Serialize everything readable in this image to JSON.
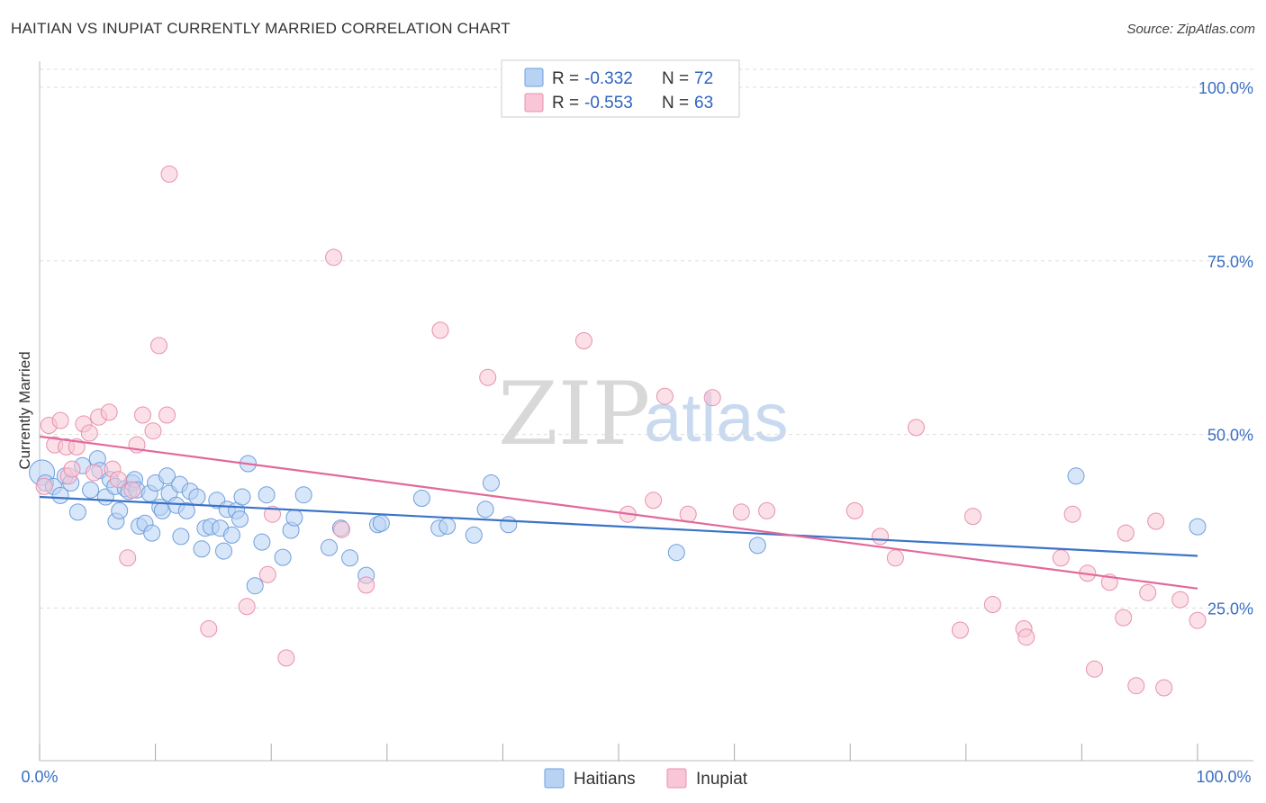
{
  "header": {
    "title": "HAITIAN VS INUPIAT CURRENTLY MARRIED CORRELATION CHART",
    "source": "Source: ZipAtlas.com"
  },
  "watermark": {
    "zip": "ZIP",
    "atlas": "atlas"
  },
  "colors": {
    "haitians_fill": "#b8d2f4",
    "haitians_stroke": "#6f9fdc",
    "haitians_line": "#3a74c8",
    "inupiat_fill": "#f8c6d6",
    "inupiat_stroke": "#e891ad",
    "inupiat_line": "#e2699a",
    "grid": "#dddddd",
    "axis_label": "#3a6fc4"
  },
  "legend": {
    "rows": [
      {
        "r_label": "R = ",
        "r_value": "-0.332",
        "n_label": "N = ",
        "n_value": "72"
      },
      {
        "r_label": "R = ",
        "r_value": "-0.553",
        "n_label": "N = ",
        "n_value": "63"
      }
    ]
  },
  "chart_data": {
    "type": "scatter",
    "title": "HAITIAN VS INUPIAT CURRENTLY MARRIED CORRELATION CHART",
    "xlabel": "",
    "ylabel": "Currently Married",
    "xlim": [
      0,
      100
    ],
    "ylim": [
      3,
      105
    ],
    "x_tick_labels": [
      "0.0%",
      "100.0%"
    ],
    "y_ticks": [
      25,
      50,
      75,
      100
    ],
    "y_tick_labels": [
      "25.0%",
      "50.0%",
      "75.0%",
      "100.0%"
    ],
    "grid": true,
    "legend_position": "top-center",
    "series": [
      {
        "name": "Haitians",
        "r": -0.332,
        "n": 72,
        "trend": {
          "x": [
            0,
            100
          ],
          "y": [
            41.0,
            32.5
          ]
        },
        "points": [
          {
            "x": 0.2,
            "y": 44.5,
            "big": true
          },
          {
            "x": 0.5,
            "y": 43.0
          },
          {
            "x": 1.2,
            "y": 42.5
          },
          {
            "x": 1.8,
            "y": 41.2
          },
          {
            "x": 2.2,
            "y": 44.0
          },
          {
            "x": 2.7,
            "y": 43.0
          },
          {
            "x": 3.3,
            "y": 38.8
          },
          {
            "x": 3.7,
            "y": 45.5
          },
          {
            "x": 4.4,
            "y": 42.0
          },
          {
            "x": 5.0,
            "y": 46.5
          },
          {
            "x": 5.2,
            "y": 44.8
          },
          {
            "x": 5.7,
            "y": 41.0
          },
          {
            "x": 6.1,
            "y": 43.5
          },
          {
            "x": 6.5,
            "y": 42.5
          },
          {
            "x": 6.6,
            "y": 37.5
          },
          {
            "x": 6.9,
            "y": 39.0
          },
          {
            "x": 7.4,
            "y": 42.2
          },
          {
            "x": 7.7,
            "y": 41.8
          },
          {
            "x": 8.0,
            "y": 43.0
          },
          {
            "x": 8.2,
            "y": 43.5
          },
          {
            "x": 8.4,
            "y": 42.0
          },
          {
            "x": 8.6,
            "y": 36.8
          },
          {
            "x": 9.1,
            "y": 37.2
          },
          {
            "x": 9.5,
            "y": 41.5
          },
          {
            "x": 9.7,
            "y": 35.8
          },
          {
            "x": 10.0,
            "y": 43.0
          },
          {
            "x": 10.4,
            "y": 39.5
          },
          {
            "x": 10.6,
            "y": 39.0
          },
          {
            "x": 11.0,
            "y": 44.0
          },
          {
            "x": 11.2,
            "y": 41.5
          },
          {
            "x": 11.8,
            "y": 39.8
          },
          {
            "x": 12.1,
            "y": 42.8
          },
          {
            "x": 12.2,
            "y": 35.3
          },
          {
            "x": 12.7,
            "y": 39.0
          },
          {
            "x": 13.0,
            "y": 41.8
          },
          {
            "x": 13.6,
            "y": 41.0
          },
          {
            "x": 14.0,
            "y": 33.5
          },
          {
            "x": 14.3,
            "y": 36.5
          },
          {
            "x": 14.8,
            "y": 36.7
          },
          {
            "x": 15.3,
            "y": 40.5
          },
          {
            "x": 15.6,
            "y": 36.5
          },
          {
            "x": 15.9,
            "y": 33.2
          },
          {
            "x": 16.2,
            "y": 39.2
          },
          {
            "x": 16.6,
            "y": 35.5
          },
          {
            "x": 17.0,
            "y": 39.0
          },
          {
            "x": 17.3,
            "y": 37.8
          },
          {
            "x": 17.5,
            "y": 41.0
          },
          {
            "x": 18.0,
            "y": 45.8
          },
          {
            "x": 18.6,
            "y": 28.2
          },
          {
            "x": 19.2,
            "y": 34.5
          },
          {
            "x": 19.6,
            "y": 41.3
          },
          {
            "x": 21.0,
            "y": 32.3
          },
          {
            "x": 21.7,
            "y": 36.2
          },
          {
            "x": 22.0,
            "y": 38.0
          },
          {
            "x": 22.8,
            "y": 41.3
          },
          {
            "x": 25.0,
            "y": 33.7
          },
          {
            "x": 26.0,
            "y": 36.5
          },
          {
            "x": 26.8,
            "y": 32.2
          },
          {
            "x": 28.2,
            "y": 29.7
          },
          {
            "x": 29.2,
            "y": 37.0
          },
          {
            "x": 29.5,
            "y": 37.2
          },
          {
            "x": 33.0,
            "y": 40.8
          },
          {
            "x": 34.5,
            "y": 36.5
          },
          {
            "x": 35.2,
            "y": 36.8
          },
          {
            "x": 37.5,
            "y": 35.5
          },
          {
            "x": 38.5,
            "y": 39.2
          },
          {
            "x": 39.0,
            "y": 43.0
          },
          {
            "x": 40.5,
            "y": 37.0
          },
          {
            "x": 55.0,
            "y": 33.0
          },
          {
            "x": 62.0,
            "y": 34.0
          },
          {
            "x": 89.5,
            "y": 44.0
          },
          {
            "x": 100.0,
            "y": 36.7
          }
        ]
      },
      {
        "name": "Inupiat",
        "r": -0.553,
        "n": 63,
        "trend": {
          "x": [
            0,
            100
          ],
          "y": [
            49.7,
            27.8
          ]
        },
        "points": [
          {
            "x": 0.4,
            "y": 42.5
          },
          {
            "x": 0.8,
            "y": 51.3
          },
          {
            "x": 1.3,
            "y": 48.5
          },
          {
            "x": 1.8,
            "y": 52.0
          },
          {
            "x": 2.3,
            "y": 48.2
          },
          {
            "x": 2.5,
            "y": 44.0
          },
          {
            "x": 2.8,
            "y": 45.0
          },
          {
            "x": 3.2,
            "y": 48.2
          },
          {
            "x": 3.8,
            "y": 51.5
          },
          {
            "x": 4.3,
            "y": 50.2
          },
          {
            "x": 4.7,
            "y": 44.5
          },
          {
            "x": 5.1,
            "y": 52.5
          },
          {
            "x": 6.0,
            "y": 53.2
          },
          {
            "x": 6.3,
            "y": 45.0
          },
          {
            "x": 6.8,
            "y": 43.5
          },
          {
            "x": 7.6,
            "y": 32.2
          },
          {
            "x": 8.0,
            "y": 42.0
          },
          {
            "x": 8.4,
            "y": 48.5
          },
          {
            "x": 8.9,
            "y": 52.8
          },
          {
            "x": 9.8,
            "y": 50.5
          },
          {
            "x": 10.3,
            "y": 62.8
          },
          {
            "x": 11.0,
            "y": 52.8
          },
          {
            "x": 11.2,
            "y": 87.5
          },
          {
            "x": 14.6,
            "y": 22.0
          },
          {
            "x": 17.9,
            "y": 25.2
          },
          {
            "x": 19.7,
            "y": 29.8
          },
          {
            "x": 20.1,
            "y": 38.5
          },
          {
            "x": 21.3,
            "y": 17.8
          },
          {
            "x": 25.4,
            "y": 75.5
          },
          {
            "x": 26.1,
            "y": 36.3
          },
          {
            "x": 28.2,
            "y": 28.3
          },
          {
            "x": 34.6,
            "y": 65.0
          },
          {
            "x": 38.7,
            "y": 58.2
          },
          {
            "x": 47.0,
            "y": 63.5
          },
          {
            "x": 50.8,
            "y": 38.5
          },
          {
            "x": 53.0,
            "y": 40.5
          },
          {
            "x": 54.0,
            "y": 55.5
          },
          {
            "x": 56.0,
            "y": 38.5
          },
          {
            "x": 58.1,
            "y": 55.3
          },
          {
            "x": 60.6,
            "y": 38.8
          },
          {
            "x": 62.8,
            "y": 39.0
          },
          {
            "x": 70.4,
            "y": 39.0
          },
          {
            "x": 72.6,
            "y": 35.3
          },
          {
            "x": 73.9,
            "y": 32.2
          },
          {
            "x": 75.7,
            "y": 51.0
          },
          {
            "x": 79.5,
            "y": 21.8
          },
          {
            "x": 80.6,
            "y": 38.2
          },
          {
            "x": 82.3,
            "y": 25.5
          },
          {
            "x": 85.0,
            "y": 22.0
          },
          {
            "x": 85.2,
            "y": 20.8
          },
          {
            "x": 88.2,
            "y": 32.2
          },
          {
            "x": 89.2,
            "y": 38.5
          },
          {
            "x": 90.5,
            "y": 30.0
          },
          {
            "x": 91.1,
            "y": 16.2
          },
          {
            "x": 92.4,
            "y": 28.7
          },
          {
            "x": 93.6,
            "y": 23.6
          },
          {
            "x": 93.8,
            "y": 35.8
          },
          {
            "x": 94.7,
            "y": 13.8
          },
          {
            "x": 95.7,
            "y": 27.2
          },
          {
            "x": 96.4,
            "y": 37.5
          },
          {
            "x": 97.1,
            "y": 13.5
          },
          {
            "x": 98.5,
            "y": 26.2
          },
          {
            "x": 100.0,
            "y": 23.2
          }
        ]
      }
    ]
  },
  "bottom_legend": {
    "items": [
      "Haitians",
      "Inupiat"
    ]
  }
}
